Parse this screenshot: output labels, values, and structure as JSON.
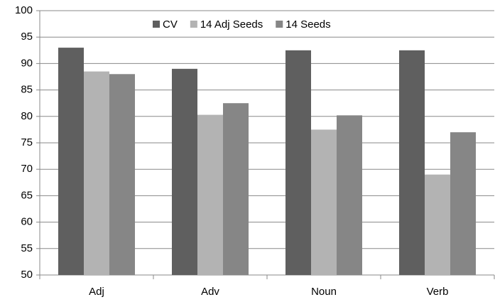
{
  "chart_data": {
    "type": "bar",
    "categories": [
      "Adj",
      "Adv",
      "Noun",
      "Verb"
    ],
    "series": [
      {
        "name": "CV",
        "color": "#5f5f5f",
        "values": [
          93,
          89,
          92.5,
          92.5
        ]
      },
      {
        "name": "14 Adj Seeds",
        "color": "#b3b3b3",
        "values": [
          88.5,
          80.3,
          77.5,
          69
        ]
      },
      {
        "name": "14 Seeds",
        "color": "#868686",
        "values": [
          88,
          82.5,
          80.2,
          77
        ]
      }
    ],
    "ylim": [
      50,
      100
    ],
    "yticks": [
      50,
      55,
      60,
      65,
      70,
      75,
      80,
      85,
      90,
      95,
      100
    ],
    "grid": true,
    "legend": "top"
  }
}
